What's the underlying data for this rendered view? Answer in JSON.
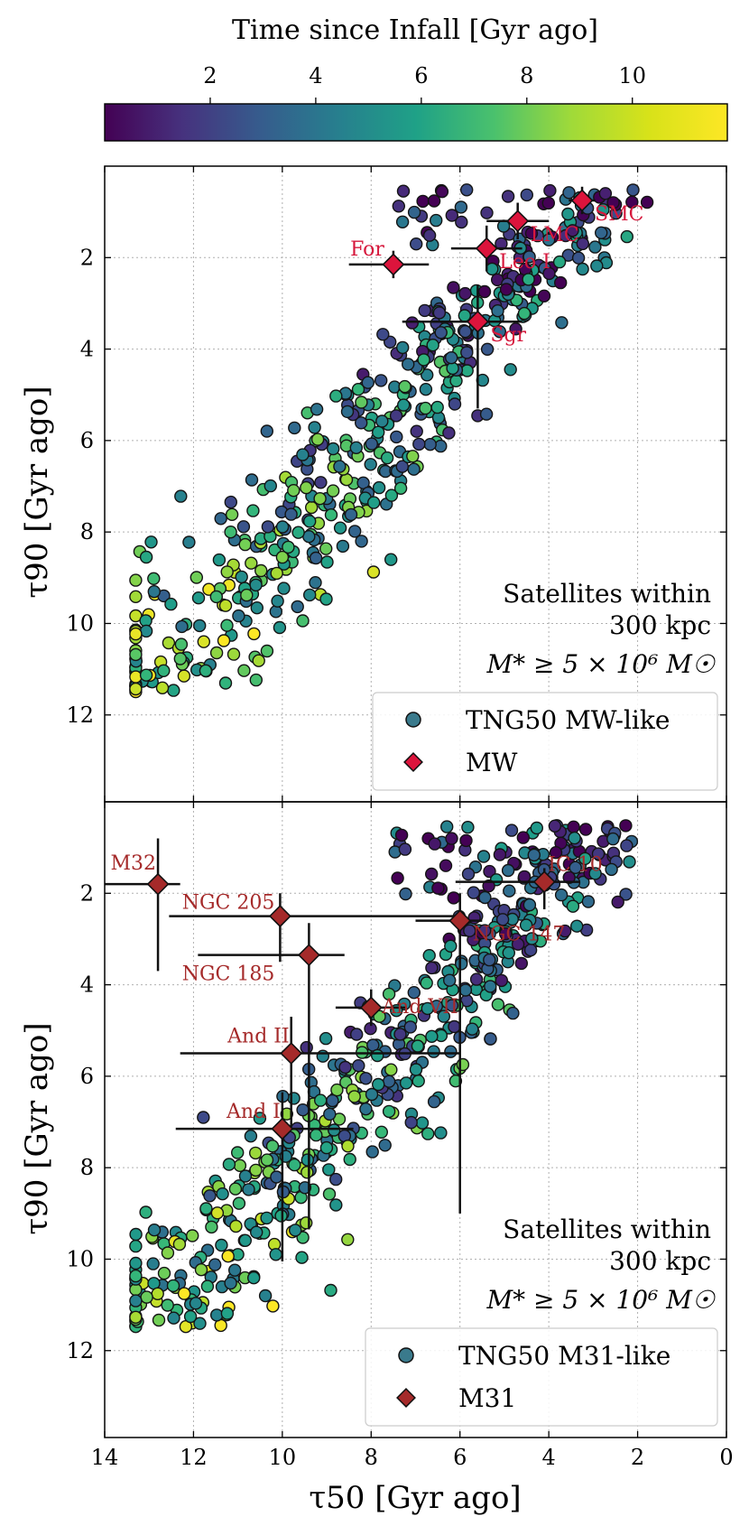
{
  "colorbar": {
    "label": "Time since Infall [Gyr ago]",
    "ticks": [
      "2",
      "4",
      "6",
      "8",
      "10"
    ],
    "tick_values": [
      2,
      4,
      6,
      8,
      10
    ],
    "range": [
      0,
      11.8
    ],
    "colormap": "viridis"
  },
  "chart_data": [
    {
      "type": "scatter",
      "panel": "top",
      "xlabel": "τ50 [Gyr ago]",
      "ylabel": "τ90 [Gyr ago]",
      "xlim": [
        14,
        0
      ],
      "ylim": [
        13.9,
        0
      ],
      "x_ticks": [
        "14",
        "12",
        "10",
        "8",
        "6",
        "4",
        "2",
        "0"
      ],
      "y_ticks": [
        "2",
        "4",
        "6",
        "8",
        "10",
        "12"
      ],
      "grid": true,
      "annotation_lines": [
        "Satellites within",
        "300 kpc",
        "M* ≥ 5 × 10⁶ M☉"
      ],
      "legend": {
        "position": "bottom-right",
        "entries": [
          "TNG50 MW-like",
          "MW"
        ]
      },
      "host": "MW",
      "marker_color": "#dc143c",
      "label_color": "#d6183c",
      "observed": [
        {
          "name": "SMC",
          "x": 3.25,
          "y": 0.75,
          "xerr": [
            0.3,
            0.3
          ],
          "yerr": [
            0.3,
            0.3
          ]
        },
        {
          "name": "LMC",
          "x": 4.7,
          "y": 1.2,
          "xerr": [
            0.7,
            0.7
          ],
          "yerr": [
            0.4,
            0.4
          ]
        },
        {
          "name": "Leo I",
          "x": 5.4,
          "y": 1.8,
          "xerr": [
            0.8,
            0.8
          ],
          "yerr": [
            0.5,
            0.5
          ]
        },
        {
          "name": "For",
          "x": 7.5,
          "y": 2.15,
          "xerr": [
            1.0,
            0.8
          ],
          "yerr": [
            0.3,
            0.3
          ]
        },
        {
          "name": "Sgr",
          "x": 5.6,
          "y": 3.4,
          "xerr": [
            1.7,
            1.0
          ],
          "yerr": [
            0.8,
            1.9
          ]
        }
      ],
      "simulated_count": 520,
      "simulated_color_range": [
        0.5,
        11.8
      ]
    },
    {
      "type": "scatter",
      "panel": "bottom",
      "xlabel": "τ50 [Gyr ago]",
      "ylabel": "τ90 [Gyr ago]",
      "xlim": [
        14,
        0
      ],
      "ylim": [
        13.9,
        0
      ],
      "x_ticks": [
        "14",
        "12",
        "10",
        "8",
        "6",
        "4",
        "2",
        "0"
      ],
      "y_ticks": [
        "2",
        "4",
        "6",
        "8",
        "10",
        "12"
      ],
      "grid": true,
      "annotation_lines": [
        "Satellites within",
        "300 kpc",
        "M* ≥ 5 × 10⁶ M☉"
      ],
      "legend": {
        "position": "bottom-right",
        "entries": [
          "TNG50 M31-like",
          "M31"
        ]
      },
      "host": "M31",
      "marker_color": "#a52a2a",
      "label_color": "#a52a2a",
      "observed": [
        {
          "name": "M32",
          "x": 12.8,
          "y": 1.8,
          "xerr": [
            1.2,
            0.5
          ],
          "yerr": [
            1.0,
            1.9
          ]
        },
        {
          "name": "IC 10",
          "x": 4.1,
          "y": 1.75,
          "xerr": [
            2.0,
            0.8
          ],
          "yerr": [
            0.3,
            0.6
          ]
        },
        {
          "name": "NGC 205",
          "x": 10.05,
          "y": 2.5,
          "xerr": [
            2.5,
            4.0
          ],
          "yerr": [
            0.5,
            1.0
          ]
        },
        {
          "name": "NGC 147",
          "x": 6.0,
          "y": 2.6,
          "xerr": [
            1.0,
            0.5
          ],
          "yerr": [
            0.6,
            6.4
          ]
        },
        {
          "name": "NGC 185",
          "x": 9.4,
          "y": 3.35,
          "xerr": [
            2.5,
            0.8
          ],
          "yerr": [
            0.7,
            6.0
          ]
        },
        {
          "name": "And VII",
          "x": 8.0,
          "y": 4.5,
          "xerr": [
            0.8,
            0.8
          ],
          "yerr": [
            0.4,
            0.4
          ]
        },
        {
          "name": "And II",
          "x": 9.8,
          "y": 5.5,
          "xerr": [
            2.5,
            3.8
          ],
          "yerr": [
            0.8,
            1.6
          ]
        },
        {
          "name": "And I",
          "x": 10.0,
          "y": 7.15,
          "xerr": [
            2.4,
            1.6
          ],
          "yerr": [
            0.8,
            2.9
          ]
        }
      ],
      "simulated_count": 560,
      "simulated_color_range": [
        0.5,
        11.8
      ]
    }
  ]
}
